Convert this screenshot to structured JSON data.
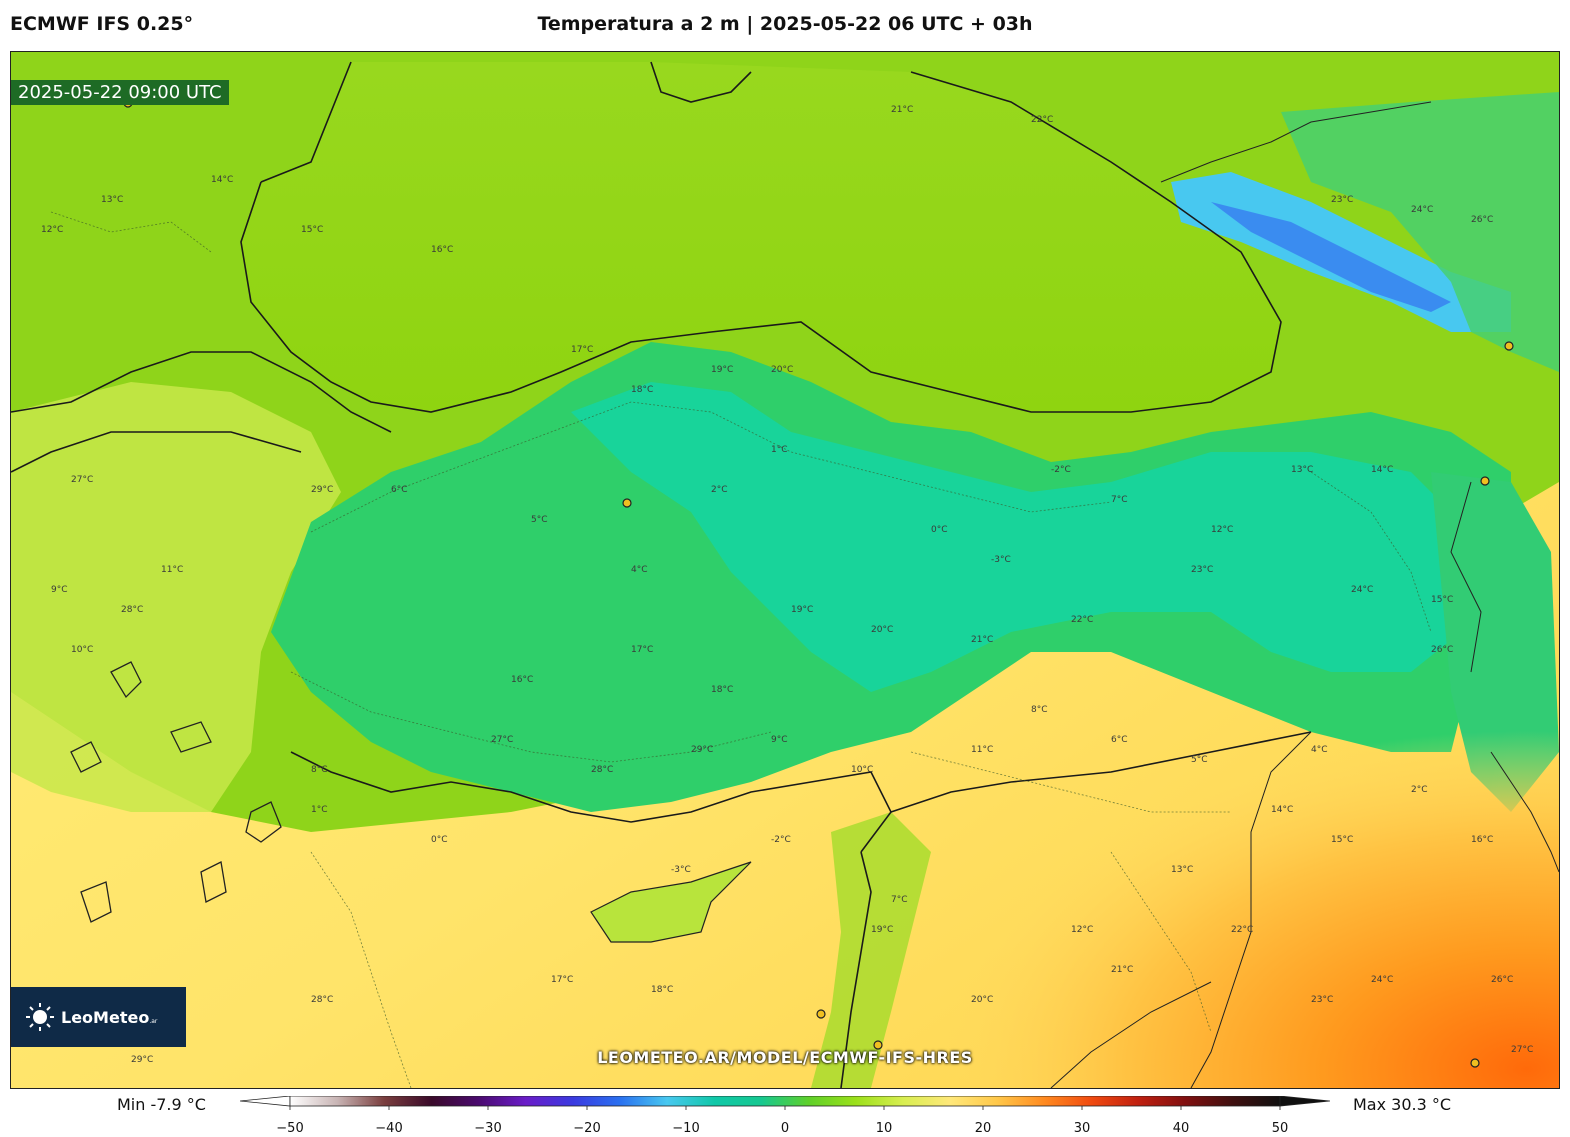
{
  "header": {
    "model": "ECMWF IFS 0.25°",
    "title": "Temperatura a 2 m | 2025-05-22 06 UTC + 03h"
  },
  "map": {
    "valid_time": "2025-05-22 09:00 UTC",
    "url": "LEOMETEO.AR/MODEL/ECMWF-IFS-HRES",
    "logo": {
      "name": "LeoMeteo",
      "suffix": ".ar"
    },
    "contour_labels": [
      "12°C",
      "13°C",
      "14°C",
      "15°C",
      "16°C",
      "17°C",
      "18°C",
      "19°C",
      "20°C",
      "21°C",
      "22°C",
      "23°C",
      "24°C",
      "26°C",
      "27°C",
      "28°C",
      "29°C",
      "9°C",
      "10°C",
      "11°C",
      "8°C",
      "6°C",
      "5°C",
      "4°C",
      "2°C",
      "1°C",
      "0°C",
      "-3°C",
      "-2°C",
      "7°C"
    ]
  },
  "colorbar": {
    "min_label": "Min -7.9 °C",
    "max_label": "Max 30.3 °C",
    "ticks": [
      "−50",
      "−40",
      "−30",
      "−20",
      "−10",
      "0",
      "10",
      "20",
      "30",
      "40",
      "50"
    ],
    "range": [
      -50,
      50
    ],
    "colors": [
      "#ffffff",
      "#c8b4b4",
      "#7a3e3e",
      "#3a0a2a",
      "#4a0a6e",
      "#6a1cc8",
      "#3a3ae0",
      "#2a70f0",
      "#48c8f0",
      "#10c8a8",
      "#16c890",
      "#5fd02a",
      "#9be01a",
      "#d8ee50",
      "#ffe87a",
      "#ffc84a",
      "#ff8a20",
      "#f04a10",
      "#c02010",
      "#801010",
      "#401010",
      "#101010"
    ]
  },
  "colors": {
    "sea_green": "#9bd91e",
    "land_warm": "#fcec7a",
    "highland_cool": "#1fd6a0",
    "mountain_cold": "#48a8f0",
    "hot_south": "#ff8c1a",
    "logo_bg": "#0f2a47",
    "timestamp_bg": "#1e6b25"
  }
}
